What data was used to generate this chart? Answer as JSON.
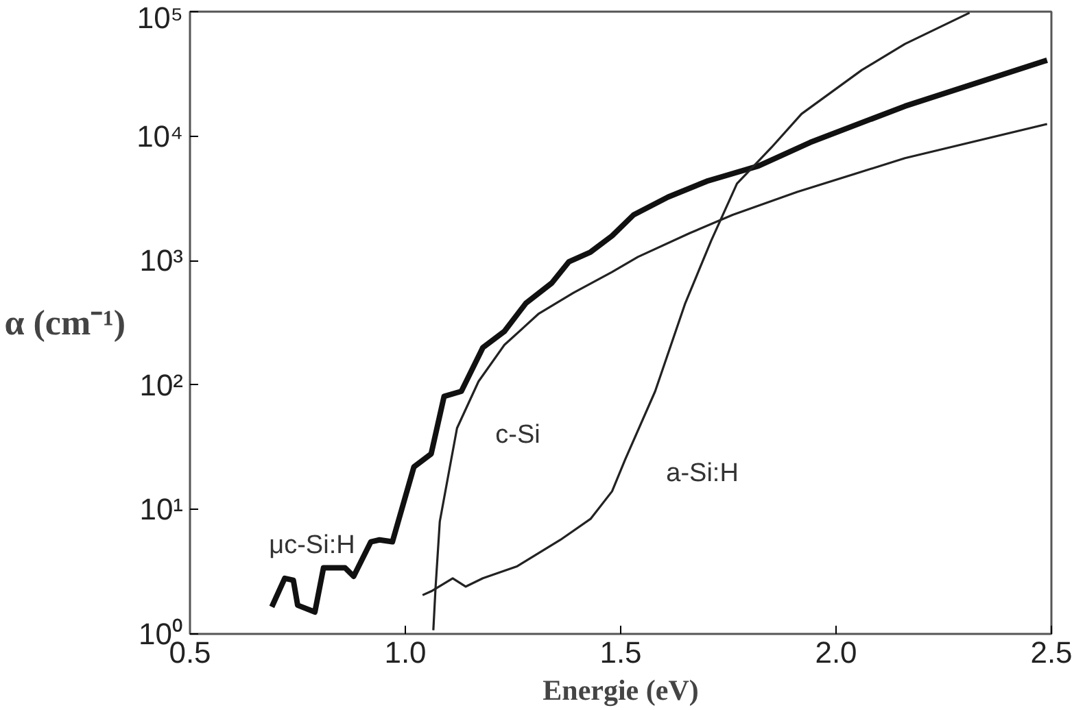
{
  "chart_data": {
    "type": "line",
    "xlabel": "Energie (eV)",
    "ylabel": "α (cm⁻¹)",
    "log": "y",
    "xlim": [
      0.5,
      2.5
    ],
    "xticks": [
      0.5,
      {
        "value": 1,
        "label": "1.0"
      },
      1.5,
      {
        "value": 2,
        "label": "2.0"
      },
      2.5
    ],
    "ylim": [
      1,
      100000
    ],
    "yticks": [
      {
        "value": 1,
        "label": "10⁰"
      },
      {
        "value": 10,
        "label": "10¹"
      },
      {
        "value": 100,
        "label": "10²"
      },
      {
        "value": 1000,
        "label": "10³"
      },
      {
        "value": 10000,
        "label": "10⁴"
      },
      {
        "value": 100000,
        "label": "10⁵"
      }
    ],
    "grid": false,
    "legend": false,
    "series": [
      {
        "name": "μc-Si:H",
        "color": "#111111",
        "x": [
          0.69,
          0.72,
          0.74,
          0.75,
          0.79,
          0.81,
          0.86,
          0.88,
          0.92,
          0.94,
          0.97,
          1.02,
          1.06,
          1.09,
          1.13,
          1.18,
          1.23,
          1.28,
          1.34,
          1.38,
          1.43,
          1.48,
          1.53,
          1.61,
          1.7,
          1.82,
          1.94,
          2.16,
          2.49
        ],
        "values": [
          1.65,
          2.8,
          2.7,
          1.7,
          1.5,
          3.4,
          3.4,
          2.9,
          5.5,
          5.7,
          5.5,
          22,
          28,
          81,
          89,
          200,
          270,
          455,
          660,
          980,
          1170,
          1580,
          2330,
          3240,
          4340,
          5760,
          8900,
          17400,
          40700
        ]
      },
      {
        "name": "c-Si",
        "color": "#222222",
        "x": [
          1.065,
          1.07,
          1.08,
          1.1,
          1.12,
          1.17,
          1.23,
          1.31,
          1.39,
          1.48,
          1.54,
          1.66,
          1.76,
          1.91,
          2.16,
          2.49
        ],
        "values": [
          1.07,
          2.3,
          8,
          19,
          45,
          107,
          210,
          375,
          550,
          810,
          1070,
          1660,
          2330,
          3560,
          6650,
          12500
        ]
      },
      {
        "name": "a-Si:H",
        "color": "#222222",
        "x": [
          1.04,
          1.06,
          1.11,
          1.14,
          1.18,
          1.26,
          1.36,
          1.43,
          1.48,
          1.51,
          1.58,
          1.65,
          1.71,
          1.77,
          1.85,
          1.92,
          2.06,
          2.16,
          2.31
        ],
        "values": [
          2.05,
          2.2,
          2.8,
          2.4,
          2.8,
          3.5,
          5.7,
          8.4,
          14,
          25,
          89,
          455,
          1440,
          4150,
          8100,
          15100,
          34000,
          55000,
          98000
        ]
      }
    ]
  }
}
